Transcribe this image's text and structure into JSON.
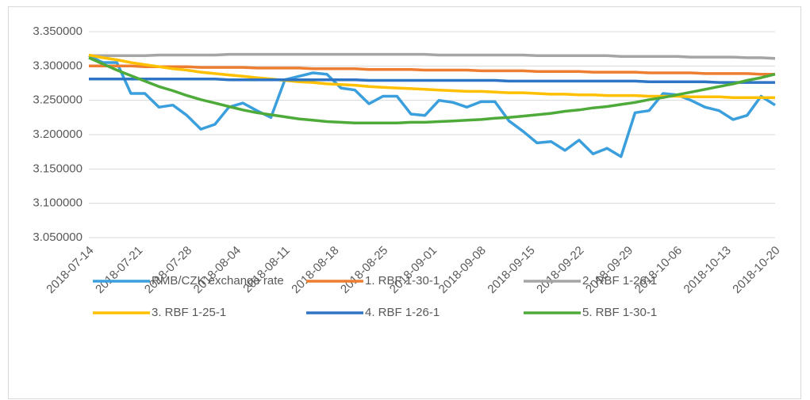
{
  "chart_data": {
    "type": "line",
    "x": [
      "2018-07-14",
      "2018-07-16",
      "2018-07-18",
      "2018-07-20",
      "2018-07-22",
      "2018-07-24",
      "2018-07-26",
      "2018-07-28",
      "2018-07-30",
      "2018-08-01",
      "2018-08-03",
      "2018-08-05",
      "2018-08-07",
      "2018-08-09",
      "2018-08-11",
      "2018-08-13",
      "2018-08-15",
      "2018-08-17",
      "2018-08-19",
      "2018-08-21",
      "2018-08-23",
      "2018-08-25",
      "2018-08-27",
      "2018-08-29",
      "2018-08-31",
      "2018-09-02",
      "2018-09-04",
      "2018-09-06",
      "2018-09-08",
      "2018-09-10",
      "2018-09-12",
      "2018-09-14",
      "2018-09-16",
      "2018-09-18",
      "2018-09-20",
      "2018-09-22",
      "2018-09-24",
      "2018-09-26",
      "2018-09-28",
      "2018-09-30",
      "2018-10-02",
      "2018-10-04",
      "2018-10-06",
      "2018-10-08",
      "2018-10-10",
      "2018-10-12",
      "2018-10-14",
      "2018-10-16",
      "2018-10-18",
      "2018-10-20"
    ],
    "series": [
      {
        "name": "RMB/CZK exchange rate",
        "color": "#3a9fdc",
        "values": [
          3.315,
          3.305,
          3.305,
          3.26,
          3.26,
          3.24,
          3.243,
          3.228,
          3.208,
          3.215,
          3.24,
          3.246,
          3.235,
          3.225,
          3.28,
          3.285,
          3.29,
          3.288,
          3.268,
          3.265,
          3.245,
          3.256,
          3.256,
          3.23,
          3.228,
          3.25,
          3.247,
          3.24,
          3.248,
          3.248,
          3.22,
          3.205,
          3.188,
          3.19,
          3.177,
          3.192,
          3.172,
          3.18,
          3.168,
          3.232,
          3.235,
          3.26,
          3.258,
          3.25,
          3.24,
          3.235,
          3.222,
          3.228,
          3.256,
          3.243
        ]
      },
      {
        "name": "1. RBF 1-30-1",
        "color": "#ed7d31",
        "values": [
          3.3,
          3.3,
          3.3,
          3.3,
          3.299,
          3.299,
          3.299,
          3.299,
          3.298,
          3.298,
          3.298,
          3.298,
          3.297,
          3.297,
          3.297,
          3.297,
          3.296,
          3.296,
          3.296,
          3.296,
          3.295,
          3.295,
          3.295,
          3.295,
          3.294,
          3.294,
          3.294,
          3.294,
          3.293,
          3.293,
          3.293,
          3.293,
          3.292,
          3.292,
          3.292,
          3.292,
          3.291,
          3.291,
          3.291,
          3.291,
          3.29,
          3.29,
          3.29,
          3.29,
          3.289,
          3.289,
          3.289,
          3.289,
          3.288,
          3.288
        ]
      },
      {
        "name": "2. RBF 1-26-1",
        "color": "#a5a5a5",
        "values": [
          3.315,
          3.315,
          3.315,
          3.315,
          3.315,
          3.316,
          3.316,
          3.316,
          3.316,
          3.316,
          3.317,
          3.317,
          3.317,
          3.317,
          3.317,
          3.317,
          3.317,
          3.317,
          3.317,
          3.317,
          3.317,
          3.317,
          3.317,
          3.317,
          3.317,
          3.316,
          3.316,
          3.316,
          3.316,
          3.316,
          3.316,
          3.316,
          3.315,
          3.315,
          3.315,
          3.315,
          3.315,
          3.315,
          3.314,
          3.314,
          3.314,
          3.314,
          3.314,
          3.313,
          3.313,
          3.313,
          3.313,
          3.312,
          3.312,
          3.311
        ]
      },
      {
        "name": "3. RBF 1-25-1",
        "color": "#ffc000",
        "values": [
          3.316,
          3.312,
          3.309,
          3.305,
          3.302,
          3.299,
          3.296,
          3.294,
          3.291,
          3.289,
          3.287,
          3.285,
          3.283,
          3.281,
          3.279,
          3.277,
          3.276,
          3.274,
          3.273,
          3.272,
          3.27,
          3.269,
          3.268,
          3.267,
          3.266,
          3.265,
          3.264,
          3.263,
          3.263,
          3.262,
          3.261,
          3.261,
          3.26,
          3.259,
          3.259,
          3.258,
          3.258,
          3.257,
          3.257,
          3.257,
          3.256,
          3.256,
          3.256,
          3.255,
          3.255,
          3.255,
          3.254,
          3.254,
          3.254,
          3.254
        ]
      },
      {
        "name": "4. RBF 1-26-1",
        "color": "#2e75c6",
        "values": [
          3.281,
          3.281,
          3.281,
          3.281,
          3.281,
          3.281,
          3.281,
          3.281,
          3.281,
          3.281,
          3.28,
          3.28,
          3.28,
          3.28,
          3.28,
          3.28,
          3.28,
          3.28,
          3.28,
          3.28,
          3.279,
          3.279,
          3.279,
          3.279,
          3.279,
          3.279,
          3.279,
          3.279,
          3.279,
          3.279,
          3.278,
          3.278,
          3.278,
          3.278,
          3.278,
          3.278,
          3.278,
          3.278,
          3.278,
          3.278,
          3.277,
          3.277,
          3.277,
          3.277,
          3.277,
          3.276,
          3.276,
          3.276,
          3.276,
          3.276
        ]
      },
      {
        "name": "5. RBF 1-30-1",
        "color": "#4eab3a",
        "values": [
          3.312,
          3.303,
          3.294,
          3.286,
          3.278,
          3.27,
          3.264,
          3.257,
          3.251,
          3.246,
          3.241,
          3.236,
          3.232,
          3.229,
          3.226,
          3.223,
          3.221,
          3.219,
          3.218,
          3.217,
          3.217,
          3.217,
          3.217,
          3.218,
          3.218,
          3.219,
          3.22,
          3.221,
          3.222,
          3.224,
          3.225,
          3.227,
          3.229,
          3.231,
          3.234,
          3.236,
          3.239,
          3.241,
          3.244,
          3.247,
          3.251,
          3.254,
          3.258,
          3.262,
          3.266,
          3.27,
          3.274,
          3.279,
          3.283,
          3.288
        ]
      }
    ],
    "xlim": [
      "2018-07-14",
      "2018-10-20"
    ],
    "xticks": [
      "2018-07-14",
      "2018-07-21",
      "2018-07-28",
      "2018-08-04",
      "2018-08-11",
      "2018-08-18",
      "2018-08-25",
      "2018-09-01",
      "2018-09-08",
      "2018-09-15",
      "2018-09-22",
      "2018-09-29",
      "2018-10-06",
      "2018-10-13",
      "2018-10-20"
    ],
    "ylim": [
      3.05,
      3.35
    ],
    "yticks": [
      {
        "value": 3.05,
        "label": "3.050000"
      },
      {
        "value": 3.1,
        "label": "3.100000"
      },
      {
        "value": 3.15,
        "label": "3.150000"
      },
      {
        "value": 3.2,
        "label": "3.200000"
      },
      {
        "value": 3.25,
        "label": "3.250000"
      },
      {
        "value": 3.3,
        "label": "3.300000"
      },
      {
        "value": 3.35,
        "label": "3.350000"
      }
    ],
    "grid": true,
    "legend": "bottom"
  }
}
